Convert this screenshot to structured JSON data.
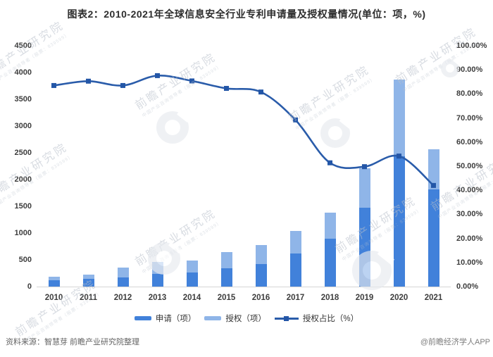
{
  "title": "图表2：2010-2021年全球信息安全行业专利申请量及授权量情况(单位：项，%)",
  "chart_data": {
    "type": "bar",
    "subtype": "stacked-bars-with-line",
    "categories": [
      "2010",
      "2011",
      "2012",
      "2013",
      "2014",
      "2015",
      "2016",
      "2017",
      "2018",
      "2019",
      "2020",
      "2021"
    ],
    "series": [
      {
        "name": "申请（项）",
        "type": "bar",
        "stack": true,
        "color": "#4181da",
        "values": [
          120,
          150,
          175,
          235,
          260,
          345,
          420,
          615,
          890,
          1470,
          2435,
          1820
        ]
      },
      {
        "name": "授权（项）",
        "type": "bar",
        "stack": true,
        "color": "#8fb5e8",
        "values": [
          65,
          80,
          185,
          225,
          230,
          300,
          350,
          430,
          490,
          735,
          1440,
          745
        ]
      },
      {
        "name": "授权占比（%）",
        "type": "line",
        "axis": "right",
        "color": "#2a5caa",
        "marker_color": "#2356a7",
        "values": [
          83.5,
          85.3,
          83.5,
          87.6,
          85.4,
          82.3,
          80.8,
          69.2,
          51.4,
          49.8,
          54.2,
          42.0
        ]
      }
    ],
    "left_axis": {
      "min": 0,
      "max": 4500,
      "step": 500,
      "ticks": [
        0,
        500,
        1000,
        1500,
        2000,
        2500,
        3000,
        3500,
        4000,
        4500
      ]
    },
    "right_axis": {
      "min": 0,
      "max": 100,
      "step": 10,
      "tick_labels": [
        "0.00%",
        "10.00%",
        "20.00%",
        "30.00%",
        "40.00%",
        "50.00%",
        "60.00%",
        "70.00%",
        "80.00%",
        "90.00%",
        "100.00%"
      ]
    },
    "grid": false,
    "legend_position": "bottom"
  },
  "footer": {
    "source": "资料来源：智慧芽 前瞻产业研究院整理",
    "credit": "@前瞻经济学人APP"
  },
  "watermark": {
    "text": "前瞻产业研究院",
    "subtext": "中国产业咨询领导者（股票：839599）"
  }
}
